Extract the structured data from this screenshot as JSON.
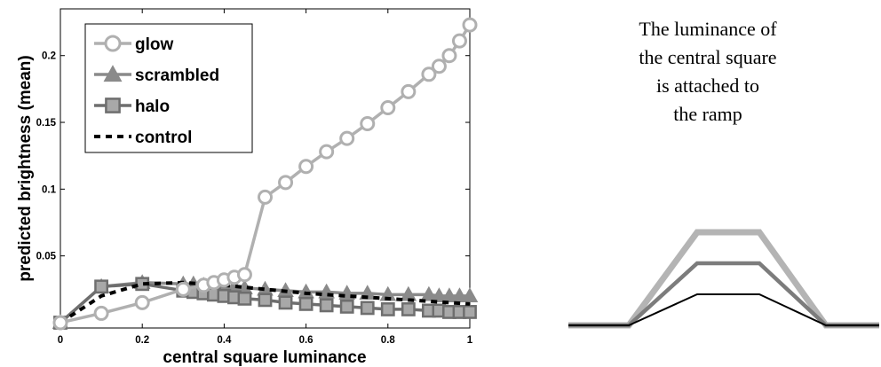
{
  "chart_data": {
    "type": "line",
    "xlabel": "central square luminance",
    "ylabel": "predicted brightness (mean)",
    "xlim": [
      0,
      1
    ],
    "ylim": [
      -0.004,
      0.235
    ],
    "xticks": [
      0,
      0.2,
      0.4,
      0.6,
      0.8,
      1
    ],
    "xtick_labels": [
      "0",
      "0.2",
      "0.4",
      "0.6",
      "0.8",
      "1"
    ],
    "yticks": [
      0.05,
      0.1,
      0.15,
      0.2
    ],
    "ytick_labels": [
      "0.05",
      "0.1",
      "0.15",
      "0.2"
    ],
    "legend_position": "top-left",
    "grid": false,
    "series": [
      {
        "name": "glow",
        "marker": "circle",
        "color": "#b0b0b0",
        "x": [
          0,
          0.1,
          0.2,
          0.3,
          0.35,
          0.375,
          0.4,
          0.425,
          0.45,
          0.5,
          0.55,
          0.6,
          0.65,
          0.7,
          0.75,
          0.8,
          0.85,
          0.9,
          0.925,
          0.95,
          0.975,
          1
        ],
        "y": [
          0,
          0.007,
          0.015,
          0.025,
          0.028,
          0.03,
          0.032,
          0.034,
          0.036,
          0.094,
          0.105,
          0.117,
          0.128,
          0.138,
          0.149,
          0.161,
          0.173,
          0.186,
          0.192,
          0.2,
          0.211,
          0.223
        ]
      },
      {
        "name": "scrambled",
        "marker": "triangle",
        "color": "#8a8a8a",
        "x": [
          0,
          0.1,
          0.2,
          0.3,
          0.325,
          0.35,
          0.375,
          0.4,
          0.425,
          0.45,
          0.5,
          0.55,
          0.6,
          0.65,
          0.7,
          0.75,
          0.8,
          0.85,
          0.9,
          0.925,
          0.95,
          0.975,
          1
        ],
        "y": [
          0,
          0.027,
          0.03,
          0.029,
          0.029,
          0.028,
          0.028,
          0.027,
          0.027,
          0.026,
          0.025,
          0.024,
          0.023,
          0.023,
          0.022,
          0.022,
          0.021,
          0.021,
          0.021,
          0.02,
          0.02,
          0.02,
          0.02
        ]
      },
      {
        "name": "halo",
        "marker": "square",
        "color": "#6e6e6e",
        "x": [
          0,
          0.1,
          0.2,
          0.3,
          0.325,
          0.35,
          0.375,
          0.4,
          0.425,
          0.45,
          0.5,
          0.55,
          0.6,
          0.65,
          0.7,
          0.75,
          0.8,
          0.85,
          0.9,
          0.925,
          0.95,
          0.975,
          1
        ],
        "y": [
          0,
          0.027,
          0.029,
          0.024,
          0.023,
          0.022,
          0.021,
          0.02,
          0.019,
          0.018,
          0.017,
          0.015,
          0.014,
          0.013,
          0.012,
          0.011,
          0.01,
          0.01,
          0.009,
          0.009,
          0.008,
          0.008,
          0.008
        ]
      },
      {
        "name": "control",
        "marker": "none",
        "color": "#000000",
        "dashed": true,
        "x": [
          0,
          0.1,
          0.2,
          0.3,
          0.4,
          0.5,
          0.6,
          0.7,
          0.8,
          0.9,
          1
        ],
        "y": [
          0,
          0.02,
          0.029,
          0.03,
          0.028,
          0.025,
          0.022,
          0.02,
          0.018,
          0.016,
          0.014
        ]
      }
    ]
  },
  "annotation": {
    "lines": [
      "The luminance of",
      "the central square",
      "is attached to",
      "the ramp"
    ]
  },
  "ramp_diagram": {
    "profiles": [
      {
        "level": 0.75,
        "color": "#b4b4b4"
      },
      {
        "level": 0.5,
        "color": "#7c7c7c"
      },
      {
        "level": 0.25,
        "color": "#000000"
      }
    ]
  }
}
